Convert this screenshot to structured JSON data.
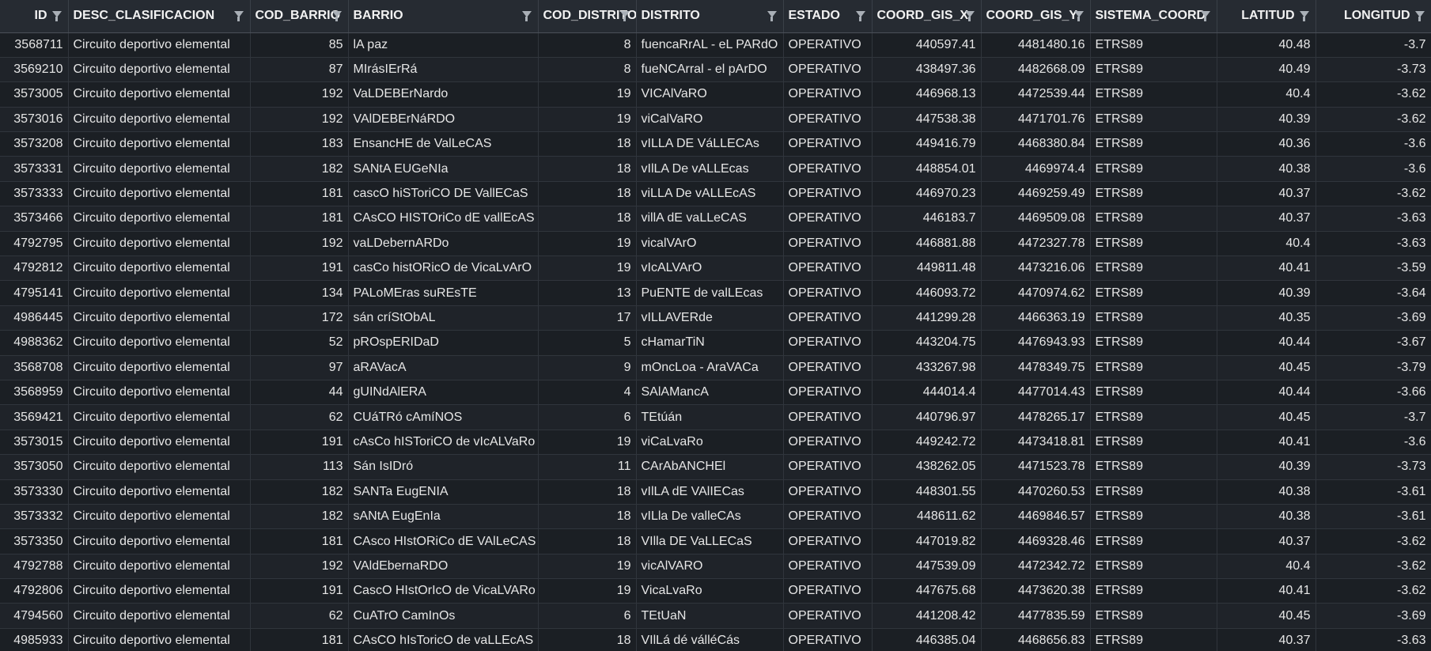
{
  "columns": [
    {
      "key": "id",
      "label": "ID",
      "align": "right"
    },
    {
      "key": "desc",
      "label": "DESC_CLASIFICACION",
      "align": "left"
    },
    {
      "key": "cod_barrio",
      "label": "COD_BARRIO",
      "align": "right"
    },
    {
      "key": "barrio",
      "label": "BARRIO",
      "align": "left"
    },
    {
      "key": "cod_distrito",
      "label": "COD_DISTRITO",
      "align": "right"
    },
    {
      "key": "distrito",
      "label": "DISTRITO",
      "align": "left"
    },
    {
      "key": "estado",
      "label": "ESTADO",
      "align": "left"
    },
    {
      "key": "coord_x",
      "label": "COORD_GIS_X",
      "align": "right"
    },
    {
      "key": "coord_y",
      "label": "COORD_GIS_Y",
      "align": "right"
    },
    {
      "key": "sistema",
      "label": "SISTEMA_COORD",
      "align": "left"
    },
    {
      "key": "latitud",
      "label": "LATITUD",
      "align": "right"
    },
    {
      "key": "longitud",
      "label": "LONGITUD",
      "align": "right"
    }
  ],
  "rows": [
    [
      "3568711",
      "Circuito deportivo elemental",
      "85",
      "lA paz",
      "8",
      "fuencaRrAL - eL PARdO",
      "OPERATIVO",
      "440597.41",
      "4481480.16",
      "ETRS89",
      "40.48",
      "-3.7"
    ],
    [
      "3569210",
      "Circuito deportivo elemental",
      "87",
      "MIrásIErRá",
      "8",
      "fueNCArral - el pArDO",
      "OPERATIVO",
      "438497.36",
      "4482668.09",
      "ETRS89",
      "40.49",
      "-3.73"
    ],
    [
      "3573005",
      "Circuito deportivo elemental",
      "192",
      "VaLDEBErNardo",
      "19",
      "VICAlVaRO",
      "OPERATIVO",
      "446968.13",
      "4472539.44",
      "ETRS89",
      "40.4",
      "-3.62"
    ],
    [
      "3573016",
      "Circuito deportivo elemental",
      "192",
      "VAlDEBErNáRDO",
      "19",
      "viCalVaRO",
      "OPERATIVO",
      "447538.38",
      "4471701.76",
      "ETRS89",
      "40.39",
      "-3.62"
    ],
    [
      "3573208",
      "Circuito deportivo elemental",
      "183",
      "EnsancHE de ValLeCAS",
      "18",
      "vILLA DE VáLLECAs",
      "OPERATIVO",
      "449416.79",
      "4468380.84",
      "ETRS89",
      "40.36",
      "-3.6"
    ],
    [
      "3573331",
      "Circuito deportivo elemental",
      "182",
      "SANtA EUGeNIa",
      "18",
      "vIlLA De vALLEcas",
      "OPERATIVO",
      "448854.01",
      "4469974.4",
      "ETRS89",
      "40.38",
      "-3.6"
    ],
    [
      "3573333",
      "Circuito deportivo elemental",
      "181",
      "cascO hiSToriCO DE VallECaS",
      "18",
      "viLLA De vALLEcAS",
      "OPERATIVO",
      "446970.23",
      "4469259.49",
      "ETRS89",
      "40.37",
      "-3.62"
    ],
    [
      "3573466",
      "Circuito deportivo elemental",
      "181",
      "CAsCO HISTOriCo dE vallEcAS",
      "18",
      "villA dE vaLLeCAS",
      "OPERATIVO",
      "446183.7",
      "4469509.08",
      "ETRS89",
      "40.37",
      "-3.63"
    ],
    [
      "4792795",
      "Circuito deportivo elemental",
      "192",
      "vaLDebernARDo",
      "19",
      "vicalVArO",
      "OPERATIVO",
      "446881.88",
      "4472327.78",
      "ETRS89",
      "40.4",
      "-3.63"
    ],
    [
      "4792812",
      "Circuito deportivo elemental",
      "191",
      "casCo histORicO de VicaLvArO",
      "19",
      "vIcALVArO",
      "OPERATIVO",
      "449811.48",
      "4473216.06",
      "ETRS89",
      "40.41",
      "-3.59"
    ],
    [
      "4795141",
      "Circuito deportivo elemental",
      "134",
      "PALoMEras suREsTE",
      "13",
      "PuENTE de valLEcas",
      "OPERATIVO",
      "446093.72",
      "4470974.62",
      "ETRS89",
      "40.39",
      "-3.64"
    ],
    [
      "4986445",
      "Circuito deportivo elemental",
      "172",
      "sán críStObAL",
      "17",
      "vILLAVERde",
      "OPERATIVO",
      "441299.28",
      "4466363.19",
      "ETRS89",
      "40.35",
      "-3.69"
    ],
    [
      "4988362",
      "Circuito deportivo elemental",
      "52",
      "pROspERIDaD",
      "5",
      "cHamarTiN",
      "OPERATIVO",
      "443204.75",
      "4476943.93",
      "ETRS89",
      "40.44",
      "-3.67"
    ],
    [
      "3568708",
      "Circuito deportivo elemental",
      "97",
      "aRAVacA",
      "9",
      "mOncLoa - AraVACa",
      "OPERATIVO",
      "433267.98",
      "4478349.75",
      "ETRS89",
      "40.45",
      "-3.79"
    ],
    [
      "3568959",
      "Circuito deportivo elemental",
      "44",
      "gUINdAlERA",
      "4",
      "SAlAMancA",
      "OPERATIVO",
      "444014.4",
      "4477014.43",
      "ETRS89",
      "40.44",
      "-3.66"
    ],
    [
      "3569421",
      "Circuito deportivo elemental",
      "62",
      "CUáTRó cAmíNOS",
      "6",
      "TEtúán",
      "OPERATIVO",
      "440796.97",
      "4478265.17",
      "ETRS89",
      "40.45",
      "-3.7"
    ],
    [
      "3573015",
      "Circuito deportivo elemental",
      "191",
      "cAsCo hISToriCO de vIcALVaRo",
      "19",
      "viCaLvaRo",
      "OPERATIVO",
      "449242.72",
      "4473418.81",
      "ETRS89",
      "40.41",
      "-3.6"
    ],
    [
      "3573050",
      "Circuito deportivo elemental",
      "113",
      "Sán IsIDró",
      "11",
      "CArAbANCHEl",
      "OPERATIVO",
      "438262.05",
      "4471523.78",
      "ETRS89",
      "40.39",
      "-3.73"
    ],
    [
      "3573330",
      "Circuito deportivo elemental",
      "182",
      "SANTa EugENIA",
      "18",
      "vIlLA dE VAlIECas",
      "OPERATIVO",
      "448301.55",
      "4470260.53",
      "ETRS89",
      "40.38",
      "-3.61"
    ],
    [
      "3573332",
      "Circuito deportivo elemental",
      "182",
      "sANtA EugEnIa",
      "18",
      "vILla De valleCAs",
      "OPERATIVO",
      "448611.62",
      "4469846.57",
      "ETRS89",
      "40.38",
      "-3.61"
    ],
    [
      "3573350",
      "Circuito deportivo elemental",
      "181",
      "CAsco HIstORiCo dE VAlLeCAS",
      "18",
      "VIlla DE VaLLECaS",
      "OPERATIVO",
      "447019.82",
      "4469328.46",
      "ETRS89",
      "40.37",
      "-3.62"
    ],
    [
      "4792788",
      "Circuito deportivo elemental",
      "192",
      "VAldEbernaRDO",
      "19",
      "vicAlVARO",
      "OPERATIVO",
      "447539.09",
      "4472342.72",
      "ETRS89",
      "40.4",
      "-3.62"
    ],
    [
      "4792806",
      "Circuito deportivo elemental",
      "191",
      "CascO HIstOrIcO de VicaLVARo",
      "19",
      "VicaLvaRo",
      "OPERATIVO",
      "447675.68",
      "4473620.38",
      "ETRS89",
      "40.41",
      "-3.62"
    ],
    [
      "4794560",
      "Circuito deportivo elemental",
      "62",
      "CuATrO CamInOs",
      "6",
      "TEtUaN",
      "OPERATIVO",
      "441208.42",
      "4477835.59",
      "ETRS89",
      "40.45",
      "-3.69"
    ],
    [
      "4985933",
      "Circuito deportivo elemental",
      "181",
      "CAsCO hIsToricO de vaLLEcAS",
      "18",
      "VIlLá dé válléCás",
      "OPERATIVO",
      "446385.04",
      "4468656.83",
      "ETRS89",
      "40.37",
      "-3.63"
    ]
  ]
}
